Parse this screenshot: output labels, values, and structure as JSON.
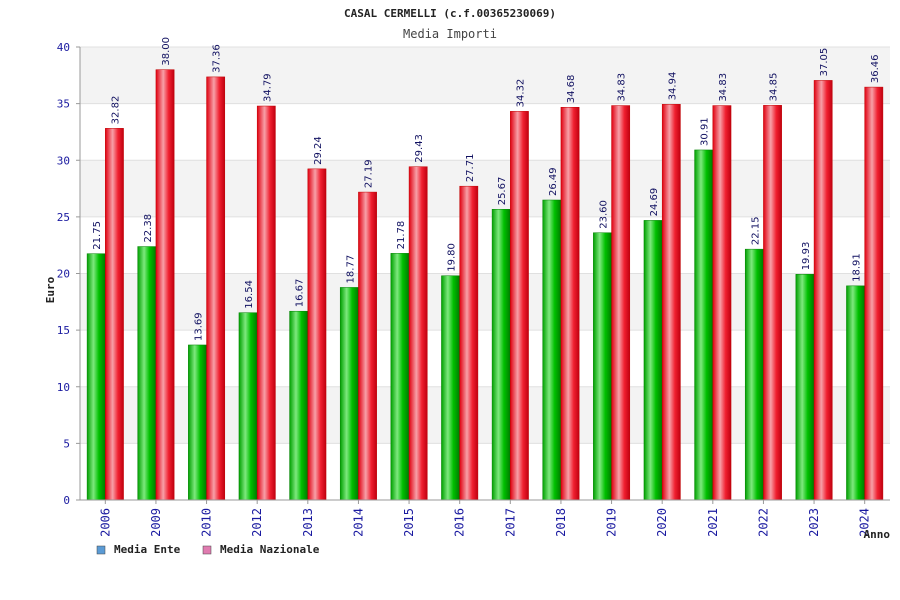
{
  "chart_data": {
    "type": "bar",
    "title": "CASAL CERMELLI (c.f.00365230069)",
    "subtitle": "Media Importi",
    "xlabel": "Anno",
    "ylabel": "Euro",
    "ylim": [
      0,
      40
    ],
    "yticks": [
      "0",
      "5",
      "10",
      "15",
      "20",
      "25",
      "30",
      "35",
      "40"
    ],
    "categories": [
      "2006",
      "2009",
      "2010",
      "2012",
      "2013",
      "2014",
      "2015",
      "2016",
      "2017",
      "2018",
      "2019",
      "2020",
      "2021",
      "2022",
      "2023",
      "2024"
    ],
    "series": [
      {
        "name": "Media Ente",
        "values": [
          21.75,
          22.38,
          13.69,
          16.54,
          16.67,
          18.77,
          21.78,
          19.8,
          25.67,
          26.49,
          23.6,
          24.69,
          30.91,
          22.15,
          19.93,
          18.91
        ],
        "labels": [
          "21.75",
          "22.38",
          "13.69",
          "16.54",
          "16.67",
          "18.77",
          "21.78",
          "19.80",
          "25.67",
          "26.49",
          "23.60",
          "24.69",
          "30.91",
          "22.15",
          "19.93",
          "18.91"
        ]
      },
      {
        "name": "Media Nazionale",
        "values": [
          32.82,
          38.0,
          37.36,
          34.79,
          29.24,
          27.19,
          29.43,
          27.71,
          34.32,
          34.68,
          34.83,
          34.94,
          34.83,
          34.85,
          37.05,
          36.46
        ],
        "labels": [
          "32.82",
          "38.00",
          "37.36",
          "34.79",
          "29.24",
          "27.19",
          "29.43",
          "27.71",
          "34.32",
          "34.68",
          "34.83",
          "34.94",
          "34.83",
          "34.85",
          "37.05",
          "36.46"
        ]
      }
    ],
    "grid": true,
    "legend": "bottom-left",
    "legend_colors": [
      "#5b9bd5",
      "#e07bb0"
    ],
    "bar_colors": [
      "#00b000",
      "#e00000"
    ]
  }
}
